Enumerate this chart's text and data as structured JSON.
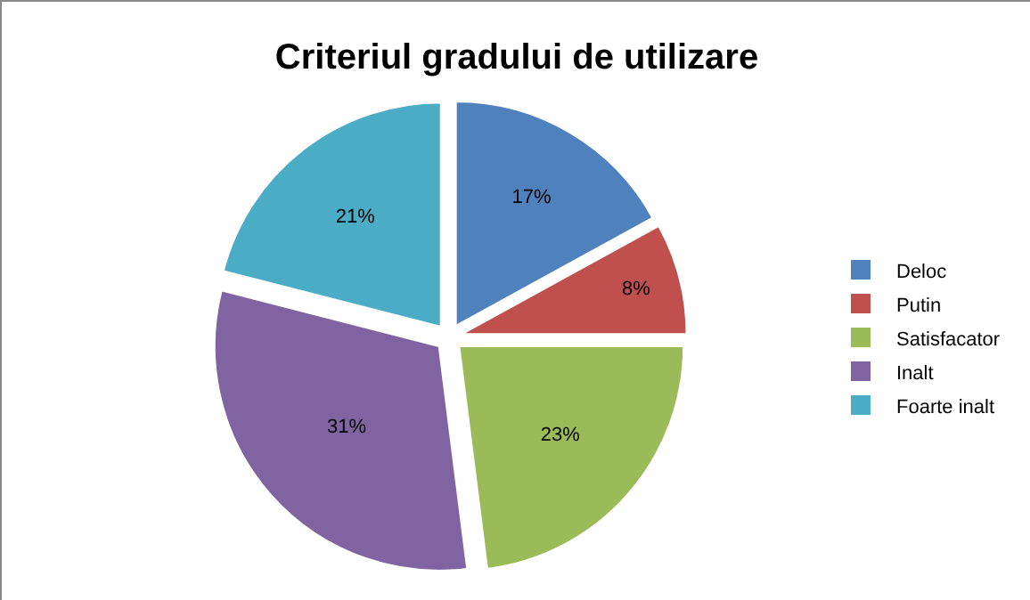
{
  "chart_data": {
    "type": "pie",
    "title": "Criteriul gradului de utilizare",
    "categories": [
      "Deloc",
      "Putin",
      "Satisfacator",
      "Inalt",
      "Foarte inalt"
    ],
    "values": [
      17,
      8,
      23,
      31,
      21
    ],
    "value_labels": [
      "17%",
      "8%",
      "23%",
      "31%",
      "21%"
    ],
    "colors": [
      "#4f81bd",
      "#c0504d",
      "#9bbb59",
      "#8064a2",
      "#4bacc6"
    ],
    "legend": "right"
  }
}
